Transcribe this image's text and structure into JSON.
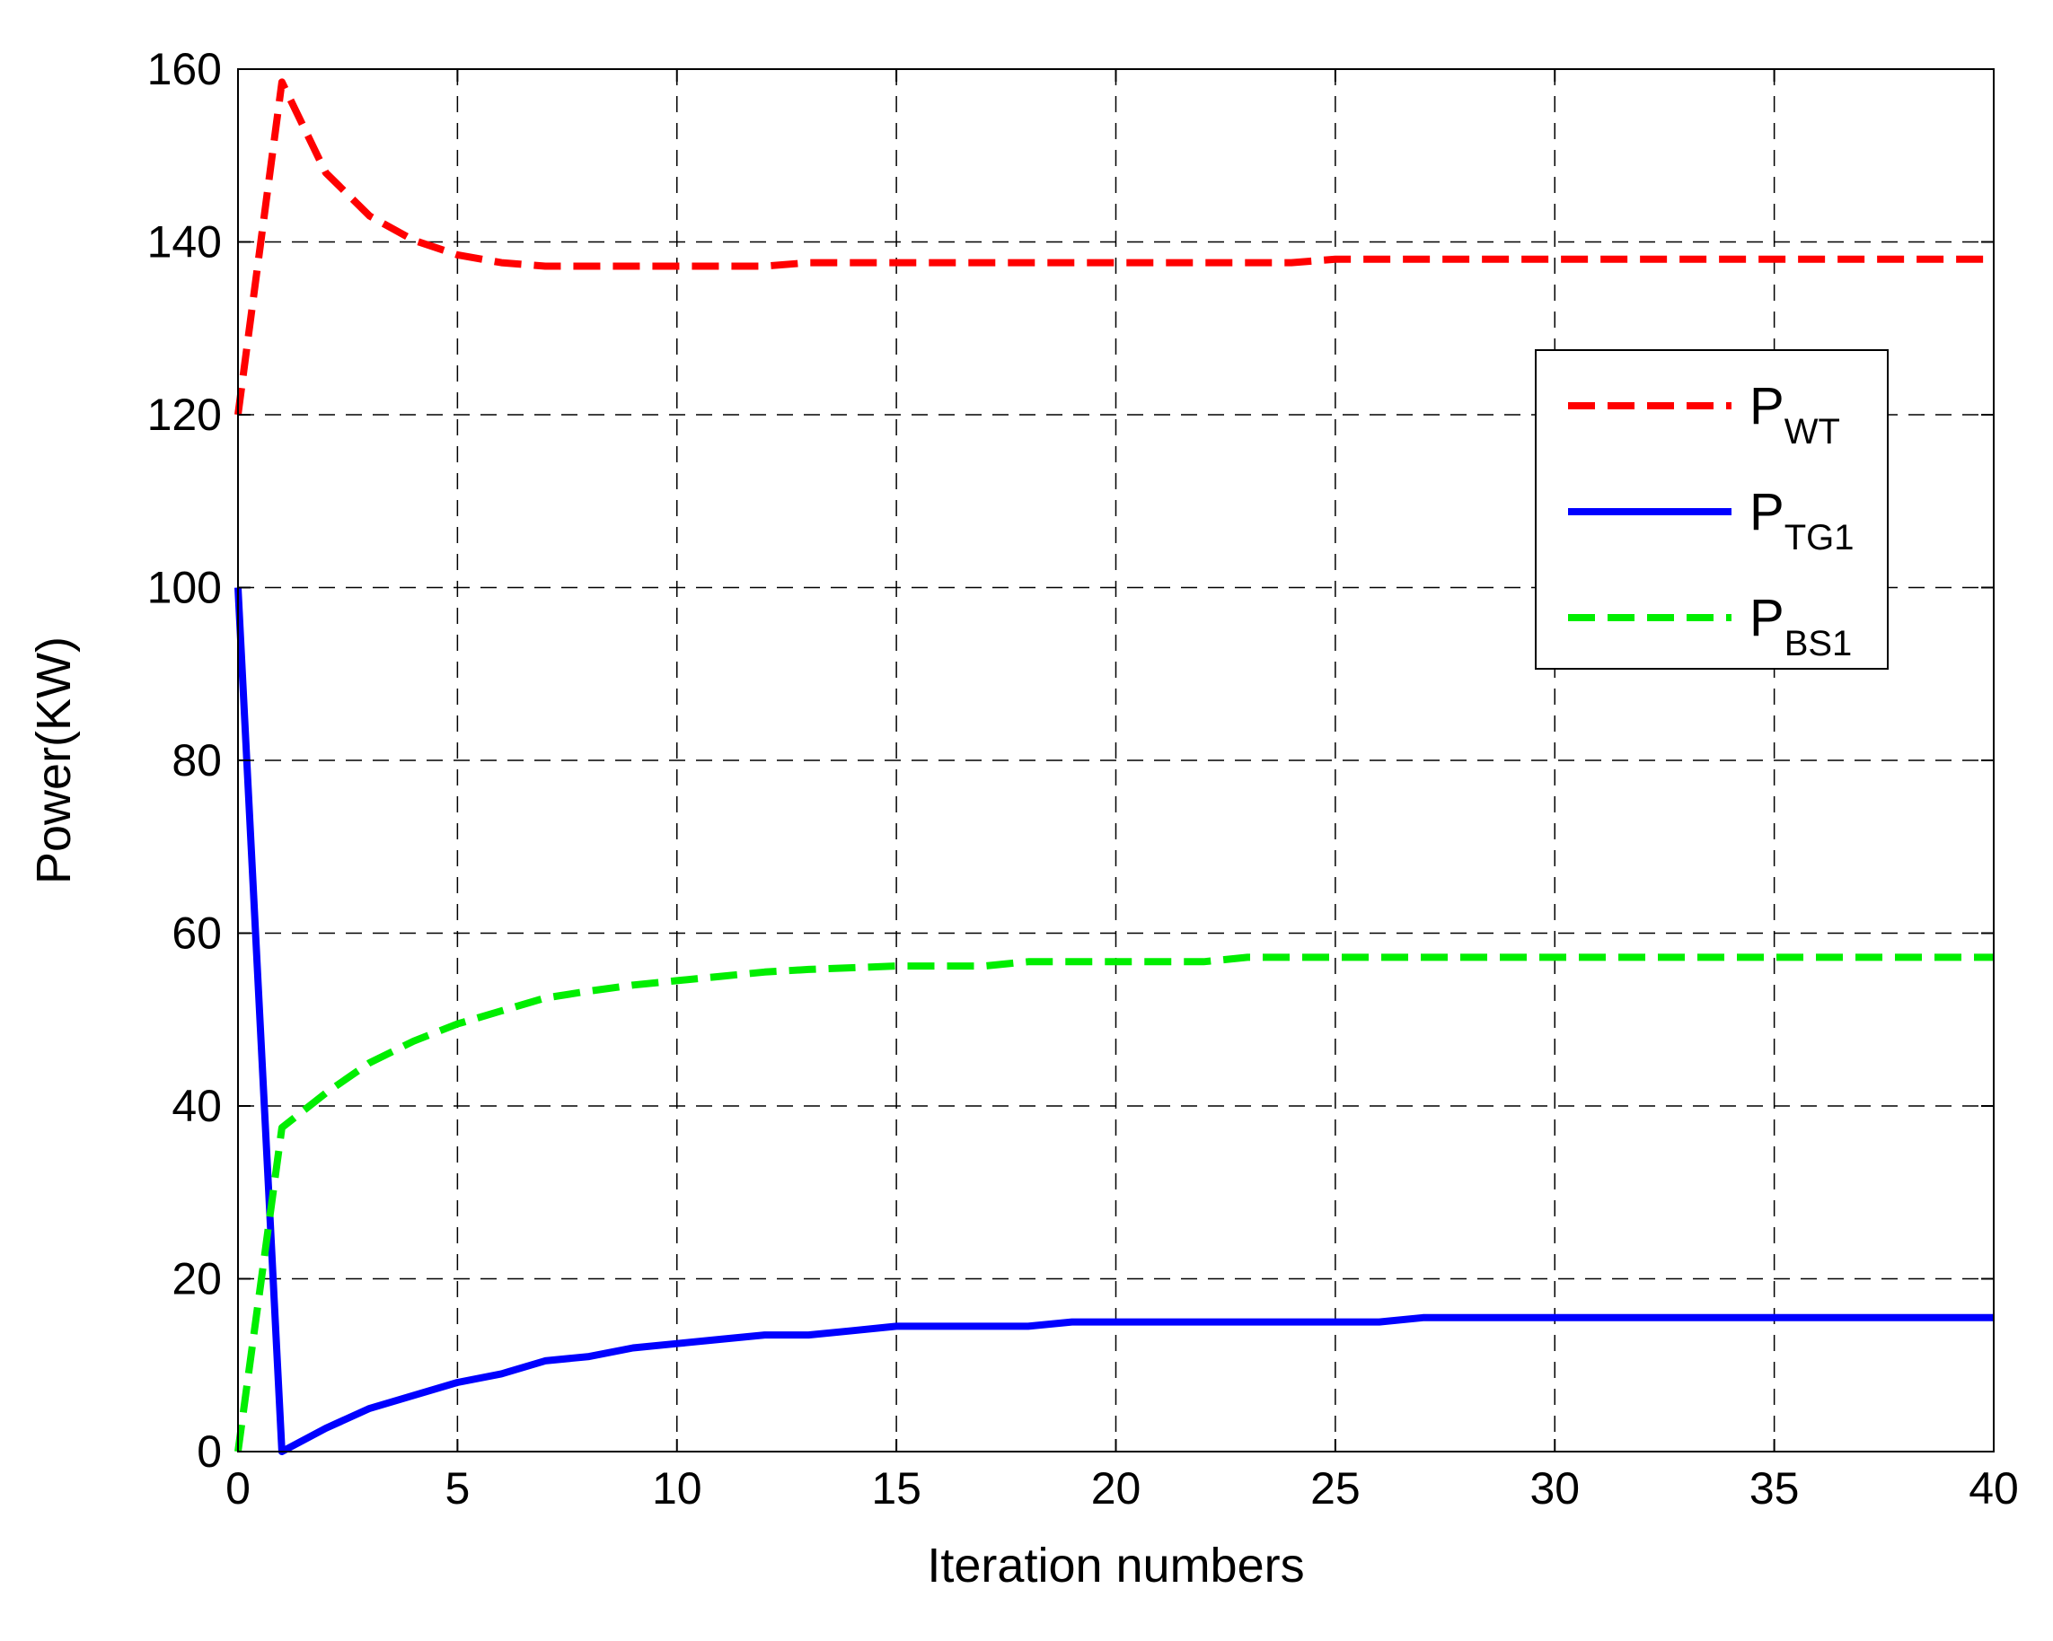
{
  "chart_data": {
    "type": "line",
    "title": "",
    "xlabel": "Iteration numbers",
    "ylabel": "Power(KW)",
    "xlim": [
      0,
      40
    ],
    "ylim": [
      0,
      160
    ],
    "xticks": [
      0,
      5,
      10,
      15,
      20,
      25,
      30,
      35,
      40
    ],
    "yticks": [
      0,
      20,
      40,
      60,
      80,
      100,
      120,
      140,
      160
    ],
    "grid": true,
    "legend_position": "right",
    "x": [
      0,
      1,
      2,
      3,
      4,
      5,
      6,
      7,
      8,
      9,
      10,
      11,
      12,
      13,
      14,
      15,
      16,
      17,
      18,
      19,
      20,
      21,
      22,
      23,
      24,
      25,
      26,
      27,
      28,
      29,
      30,
      31,
      32,
      33,
      34,
      35,
      36,
      37,
      38,
      39,
      40
    ],
    "series": [
      {
        "name": "P",
        "sub": "WT",
        "color": "#ff0000",
        "dash": "dashed",
        "values": [
          120,
          158.5,
          148,
          143,
          140.2,
          138.5,
          137.6,
          137.2,
          137.2,
          137.2,
          137.2,
          137.2,
          137.2,
          137.6,
          137.6,
          137.6,
          137.6,
          137.6,
          137.6,
          137.6,
          137.6,
          137.6,
          137.6,
          137.6,
          137.6,
          138,
          138,
          138,
          138,
          138,
          138,
          138,
          138,
          138,
          138,
          138,
          138,
          138,
          138,
          138,
          138
        ]
      },
      {
        "name": "P",
        "sub": "TG1",
        "color": "#0000ff",
        "dash": "solid",
        "values": [
          100,
          0,
          2.7,
          5,
          6.5,
          8,
          9,
          10.5,
          11,
          12,
          12.5,
          13,
          13.5,
          13.5,
          14,
          14.5,
          14.5,
          14.5,
          14.5,
          15,
          15,
          15,
          15,
          15,
          15,
          15,
          15,
          15.5,
          15.5,
          15.5,
          15.5,
          15.5,
          15.5,
          15.5,
          15.5,
          15.5,
          15.5,
          15.5,
          15.5,
          15.5,
          15.5
        ]
      },
      {
        "name": "P",
        "sub": "BS1",
        "color": "#00ee00",
        "dash": "dashed",
        "values": [
          0,
          37.5,
          41.5,
          45,
          47.5,
          49.5,
          51,
          52.5,
          53.3,
          54,
          54.5,
          55,
          55.5,
          55.8,
          56,
          56.2,
          56.2,
          56.2,
          56.7,
          56.7,
          56.7,
          56.7,
          56.7,
          57.2,
          57.2,
          57.2,
          57.2,
          57.2,
          57.2,
          57.2,
          57.2,
          57.2,
          57.2,
          57.2,
          57.2,
          57.2,
          57.2,
          57.2,
          57.2,
          57.2,
          57.2
        ]
      }
    ]
  }
}
